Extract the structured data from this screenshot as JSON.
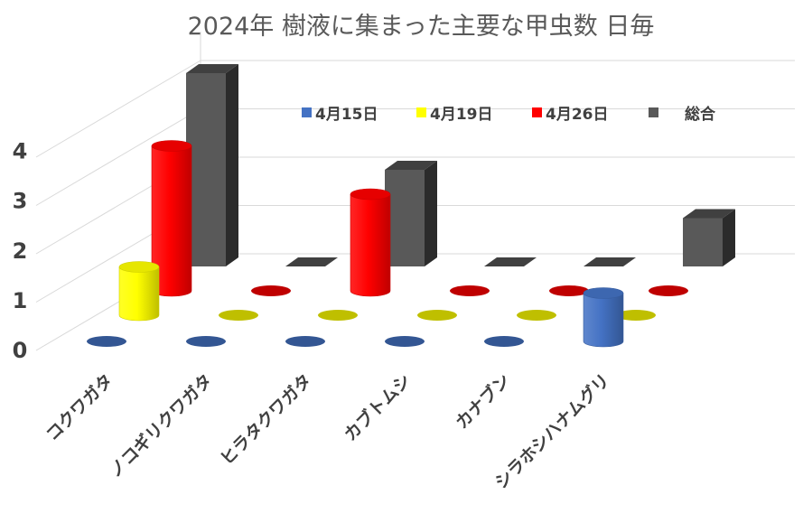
{
  "chart_data": {
    "type": "bar",
    "title": "2024年 樹液に集まった主要な甲虫数 日毎",
    "categories": [
      "コクワガタ",
      "ノコギリクワガタ",
      "ヒラタクワガタ",
      "カブトムシ",
      "カナブン",
      "シラホシハナムグリ"
    ],
    "series": [
      {
        "name": "4月15日",
        "color": "#4472C4",
        "values": [
          0,
          0,
          0,
          0,
          0,
          1
        ]
      },
      {
        "name": "4月19日",
        "color": "#FFFF00",
        "values": [
          1,
          0,
          0,
          0,
          0,
          0
        ]
      },
      {
        "name": "4月26日",
        "color": "#FF0000",
        "values": [
          3,
          0,
          2,
          0,
          0,
          0
        ]
      },
      {
        "name": "総合",
        "color": "#595959",
        "values": [
          4,
          0,
          2,
          0,
          0,
          1
        ]
      }
    ],
    "ylim": [
      0,
      4
    ],
    "yticks": [
      "0",
      "1",
      "2",
      "3",
      "4"
    ],
    "legend_position": "top",
    "grid": true,
    "view": "3d-clustered"
  }
}
